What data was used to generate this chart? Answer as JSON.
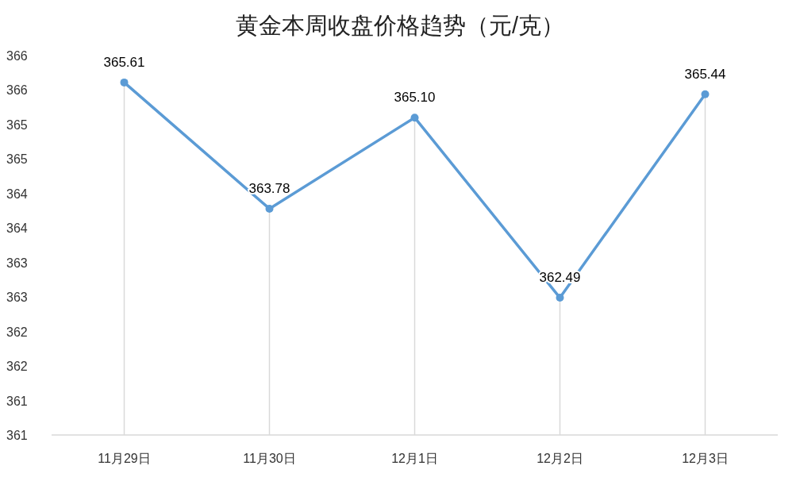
{
  "chart_data": {
    "type": "line",
    "title": "黄金本周收盘价格趋势（元/克）",
    "categories": [
      "11月29日",
      "11月30日",
      "12月1日",
      "12月2日",
      "12月3日"
    ],
    "series": [
      {
        "color": "#5b9bd5",
        "values": [
          365.61,
          363.78,
          365.1,
          362.49,
          365.44
        ]
      }
    ],
    "value_labels": [
      "365.61",
      "363.78",
      "365.10",
      "362.49",
      "365.44"
    ],
    "ylim": [
      360.5,
      366
    ],
    "yticks": [
      {
        "value": 360.5,
        "label": "361"
      },
      {
        "value": 361,
        "label": "361"
      },
      {
        "value": 361.5,
        "label": "362"
      },
      {
        "value": 362,
        "label": "362"
      },
      {
        "value": 362.5,
        "label": "363"
      },
      {
        "value": 363,
        "label": "363"
      },
      {
        "value": 363.5,
        "label": "364"
      },
      {
        "value": 364,
        "label": "364"
      },
      {
        "value": 364.5,
        "label": "365"
      },
      {
        "value": 365,
        "label": "365"
      },
      {
        "value": 365.5,
        "label": "366"
      },
      {
        "value": 366,
        "label": "366"
      }
    ],
    "grid": "x",
    "marker": "circle",
    "line_style": "solid"
  }
}
